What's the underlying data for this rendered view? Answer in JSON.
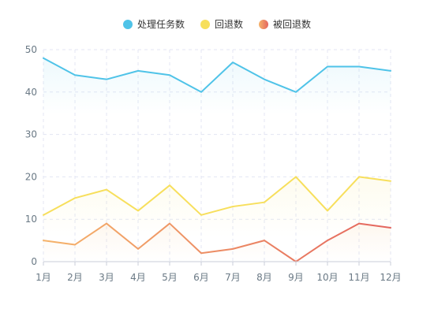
{
  "chart_data": {
    "type": "line",
    "title": "",
    "xlabel": "",
    "ylabel": "",
    "categories": [
      "1月",
      "2月",
      "3月",
      "4月",
      "5月",
      "6月",
      "7月",
      "8月",
      "9月",
      "10月",
      "11月",
      "12月"
    ],
    "ylim": [
      0,
      50
    ],
    "yticks": [
      0,
      10,
      20,
      30,
      40,
      50
    ],
    "grid": true,
    "legend_position": "top-center",
    "series": [
      {
        "name": "处理任务数",
        "values": [
          48,
          44,
          43,
          45,
          44,
          40,
          47,
          43,
          40,
          46,
          46,
          45
        ],
        "color": "#4fc3e8"
      },
      {
        "name": "回退数",
        "values": [
          11,
          15,
          17,
          12,
          18,
          11,
          13,
          14,
          20,
          12,
          20,
          19
        ],
        "color": "#f7df5c"
      },
      {
        "name": "被回退数",
        "values": [
          5,
          4,
          9,
          3,
          9,
          2,
          3,
          5,
          0,
          5,
          9,
          8
        ],
        "color_start": "#f5b36a",
        "color_end": "#e4655e"
      }
    ]
  }
}
